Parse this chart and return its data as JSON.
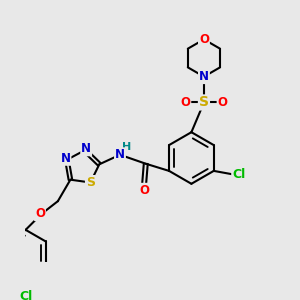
{
  "bg_color": "#e8e8e8",
  "atom_colors": {
    "N": "#0000cc",
    "O": "#ff0000",
    "S_thia": "#ccaa00",
    "S_sulfo": "#ccaa00",
    "Cl": "#00bb00",
    "H": "#008888"
  },
  "lw": 1.5,
  "fs": 8.5,
  "dbo": 0.055
}
